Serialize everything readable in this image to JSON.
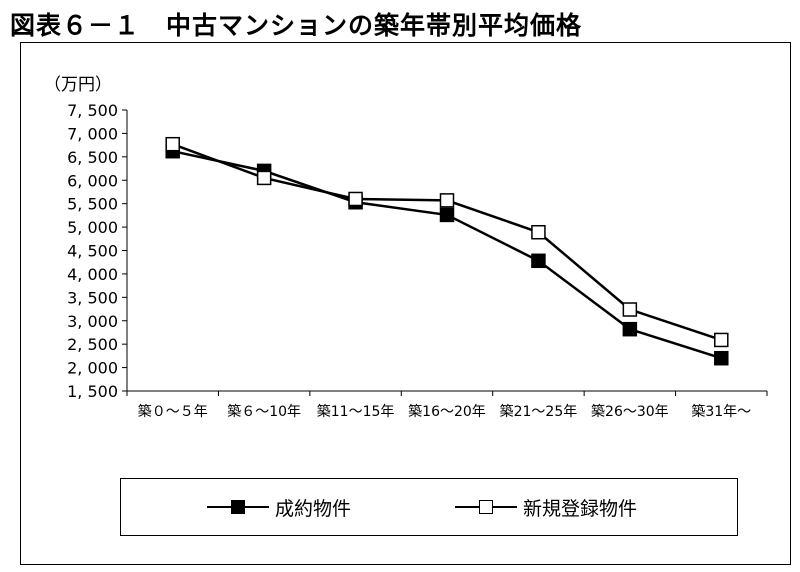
{
  "figure_title": "図表６－１　中古マンションの築年帯別平均価格",
  "chart_data": {
    "type": "line",
    "unit_label": "（万円）",
    "categories": [
      "築０～５年",
      "築６～10年",
      "築11～15年",
      "築16～20年",
      "築21～25年",
      "築26～30年",
      "築31年～"
    ],
    "y_ticks": [
      "7, 500",
      "7, 000",
      "6, 500",
      "6, 000",
      "5, 500",
      "5, 000",
      "4, 500",
      "4, 000",
      "3, 500",
      "3, 000",
      "2, 500",
      "2, 000",
      "1, 500"
    ],
    "ylim": [
      1500,
      7500
    ],
    "grid": false,
    "legend_position": "bottom",
    "series": [
      {
        "name": "成約物件",
        "marker": "filled-square",
        "color": "#000000",
        "values": [
          6620,
          6200,
          5530,
          5260,
          4280,
          2820,
          2200
        ]
      },
      {
        "name": "新規登録物件",
        "marker": "open-square",
        "color": "#000000",
        "values": [
          6770,
          6050,
          5600,
          5570,
          4890,
          3240,
          2590
        ]
      }
    ]
  }
}
